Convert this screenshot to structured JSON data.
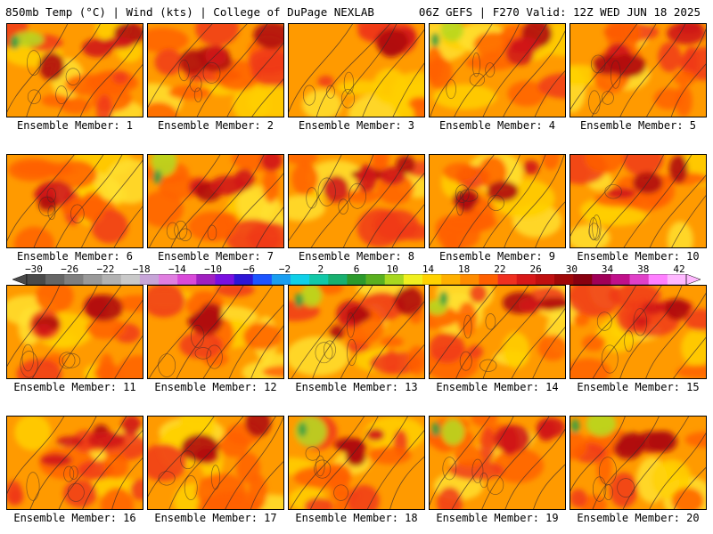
{
  "header": {
    "left": "850mb Temp (°C) | Wind (kts) | College of DuPage NEXLAB",
    "right": "06Z GEFS | F270 Valid: 12Z WED JUN 18 2025"
  },
  "members": [
    {
      "label": "Ensemble Member: 1",
      "warmth": 0.55,
      "seed": 11,
      "green": true
    },
    {
      "label": "Ensemble Member: 2",
      "warmth": 0.65,
      "seed": 23,
      "green": false
    },
    {
      "label": "Ensemble Member: 3",
      "warmth": 0.3,
      "seed": 37,
      "green": false
    },
    {
      "label": "Ensemble Member: 4",
      "warmth": 0.4,
      "seed": 41,
      "green": true
    },
    {
      "label": "Ensemble Member: 5",
      "warmth": 0.7,
      "seed": 53,
      "green": false
    },
    {
      "label": "Ensemble Member: 6",
      "warmth": 0.35,
      "seed": 61,
      "green": false
    },
    {
      "label": "Ensemble Member: 7",
      "warmth": 0.7,
      "seed": 73,
      "green": true
    },
    {
      "label": "Ensemble Member: 8",
      "warmth": 0.6,
      "seed": 83,
      "green": false
    },
    {
      "label": "Ensemble Member: 9",
      "warmth": 0.55,
      "seed": 97,
      "green": false
    },
    {
      "label": "Ensemble Member: 10",
      "warmth": 0.4,
      "seed": 101,
      "green": false
    },
    {
      "label": "Ensemble Member: 11",
      "warmth": 0.55,
      "seed": 113,
      "green": false
    },
    {
      "label": "Ensemble Member: 12",
      "warmth": 0.35,
      "seed": 127,
      "green": false
    },
    {
      "label": "Ensemble Member: 13",
      "warmth": 0.55,
      "seed": 131,
      "green": true
    },
    {
      "label": "Ensemble Member: 14",
      "warmth": 0.35,
      "seed": 149,
      "green": true
    },
    {
      "label": "Ensemble Member: 15",
      "warmth": 0.55,
      "seed": 151,
      "green": false
    },
    {
      "label": "Ensemble Member: 16",
      "warmth": 0.7,
      "seed": 163,
      "green": false
    },
    {
      "label": "Ensemble Member: 17",
      "warmth": 0.4,
      "seed": 173,
      "green": false
    },
    {
      "label": "Ensemble Member: 18",
      "warmth": 0.7,
      "seed": 181,
      "green": true
    },
    {
      "label": "Ensemble Member: 19",
      "warmth": 0.6,
      "seed": 191,
      "green": true
    },
    {
      "label": "Ensemble Member: 20",
      "warmth": 0.55,
      "seed": 197,
      "green": true
    }
  ],
  "colorbar": {
    "labels": [
      "−30",
      "−26",
      "−22",
      "−18",
      "−14",
      "−10",
      "−6",
      "−2",
      "2",
      "6",
      "10",
      "14",
      "18",
      "22",
      "26",
      "30",
      "34",
      "38",
      "42"
    ],
    "colors": [
      "#4a4a4a",
      "#666666",
      "#7f7f7f",
      "#999999",
      "#b2b2b2",
      "#c9c9c9",
      "#c7a5d8",
      "#e07ee0",
      "#d94ad9",
      "#a020c0",
      "#7a10e0",
      "#2e16d6",
      "#1c55ff",
      "#1a9ef0",
      "#10d0e8",
      "#12c8a8",
      "#18b070",
      "#2c9a2c",
      "#5ab020",
      "#a8d820",
      "#f0f020",
      "#ffd200",
      "#ffb000",
      "#ff8c00",
      "#ff6000",
      "#f03020",
      "#d81818",
      "#c01010",
      "#a00808",
      "#880010",
      "#a00058",
      "#c0108a",
      "#e040c8",
      "#ff80ff",
      "#ffb8ff"
    ]
  }
}
